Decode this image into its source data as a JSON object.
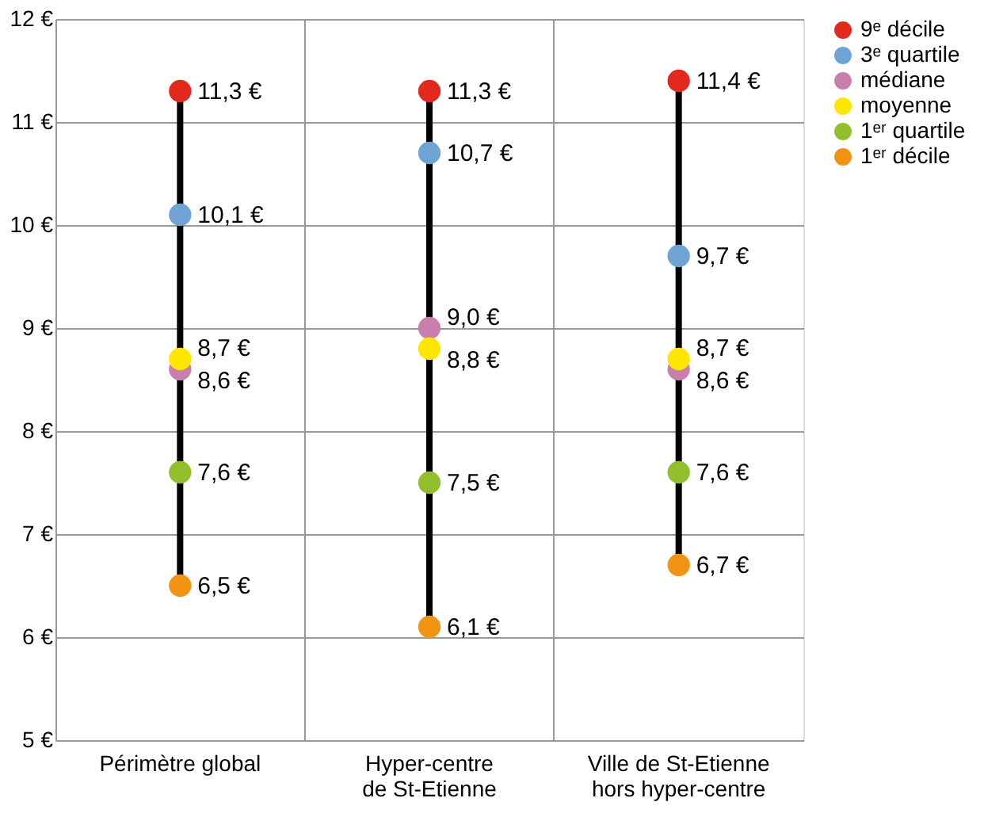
{
  "chart_data": {
    "type": "scatter",
    "categories": [
      "Périmètre global",
      "Hyper-centre\nde St-Etienne",
      "Ville de St-Etienne\nhors hyper-centre"
    ],
    "series": [
      {
        "name": "9ᵉ décile",
        "color": "#e3281e",
        "values": [
          11.3,
          11.3,
          11.4
        ],
        "value_labels": [
          "11,3 €",
          "11,3 €",
          "11,4 €"
        ]
      },
      {
        "name": "3ᵉ quartile",
        "color": "#6fa3d4",
        "values": [
          10.1,
          10.7,
          9.7
        ],
        "value_labels": [
          "10,1 €",
          "10,7 €",
          "9,7 €"
        ]
      },
      {
        "name": "médiane",
        "color": "#c97fae",
        "values": [
          8.6,
          9.0,
          8.6
        ],
        "value_labels": [
          "8,6 €",
          "9,0 €",
          "8,6 €"
        ]
      },
      {
        "name": "moyenne",
        "color": "#ffe600",
        "values": [
          8.7,
          8.8,
          8.7
        ],
        "value_labels": [
          "8,7 €",
          "8,8 €",
          "8,7 €"
        ]
      },
      {
        "name": "1ᵉʳ quartile",
        "color": "#92c02c",
        "values": [
          7.6,
          7.5,
          7.6
        ],
        "value_labels": [
          "7,6 €",
          "7,5 €",
          "7,6 €"
        ]
      },
      {
        "name": "1ᵉʳ décile",
        "color": "#f39314",
        "values": [
          6.5,
          6.1,
          6.7
        ],
        "value_labels": [
          "6,5 €",
          "6,1 €",
          "6,7 €"
        ]
      }
    ],
    "ylim": [
      5,
      12
    ],
    "yticks": [
      {
        "value": 5,
        "label": "5 €"
      },
      {
        "value": 6,
        "label": "6 €"
      },
      {
        "value": 7,
        "label": "7 €"
      },
      {
        "value": 8,
        "label": "8 €"
      },
      {
        "value": 9,
        "label": "9 €"
      },
      {
        "value": 10,
        "label": "10 €"
      },
      {
        "value": 11,
        "label": "11 €"
      },
      {
        "value": 12,
        "label": "12 €"
      }
    ],
    "grid": true,
    "legend": "right",
    "marker": "circle"
  }
}
